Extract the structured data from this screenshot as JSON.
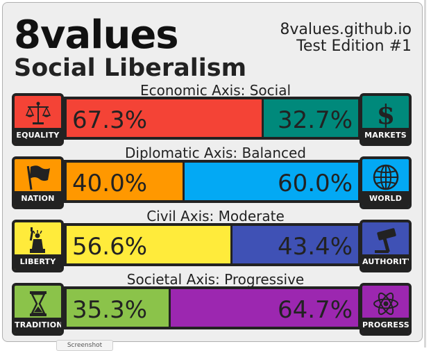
{
  "header": {
    "title": "8values",
    "ideology": "Social Liberalism",
    "site_url": "8values.github.io",
    "edition": "Test Edition #1"
  },
  "axes": [
    {
      "label": "Economic Axis: Social",
      "left": {
        "caption": "EQUALITY",
        "percent": 67.3,
        "percent_text": "67.3%",
        "color": "#f44336",
        "icon": "scales-icon"
      },
      "right": {
        "caption": "MARKETS",
        "percent": 32.7,
        "percent_text": "32.7%",
        "color": "#00897b",
        "icon": "dollar-icon"
      }
    },
    {
      "label": "Diplomatic Axis: Balanced",
      "left": {
        "caption": "NATION",
        "percent": 40.0,
        "percent_text": "40.0%",
        "color": "#ff9800",
        "icon": "flag-icon"
      },
      "right": {
        "caption": "WORLD",
        "percent": 60.0,
        "percent_text": "60.0%",
        "color": "#03a9f4",
        "icon": "globe-icon"
      }
    },
    {
      "label": "Civil Axis: Moderate",
      "left": {
        "caption": "LIBERTY",
        "percent": 56.6,
        "percent_text": "56.6%",
        "color": "#ffeb3b",
        "icon": "statue-of-liberty-icon"
      },
      "right": {
        "caption": "AUTHORITY",
        "percent": 43.4,
        "percent_text": "43.4%",
        "color": "#3f51b5",
        "icon": "gavel-icon"
      }
    },
    {
      "label": "Societal Axis: Progressive",
      "left": {
        "caption": "TRADITION",
        "percent": 35.3,
        "percent_text": "35.3%",
        "color": "#8bc34a",
        "icon": "hourglass-icon"
      },
      "right": {
        "caption": "PROGRESS",
        "percent": 64.7,
        "percent_text": "64.7%",
        "color": "#9c27b0",
        "icon": "atom-icon"
      }
    }
  ],
  "tooltip": "Screenshot"
}
